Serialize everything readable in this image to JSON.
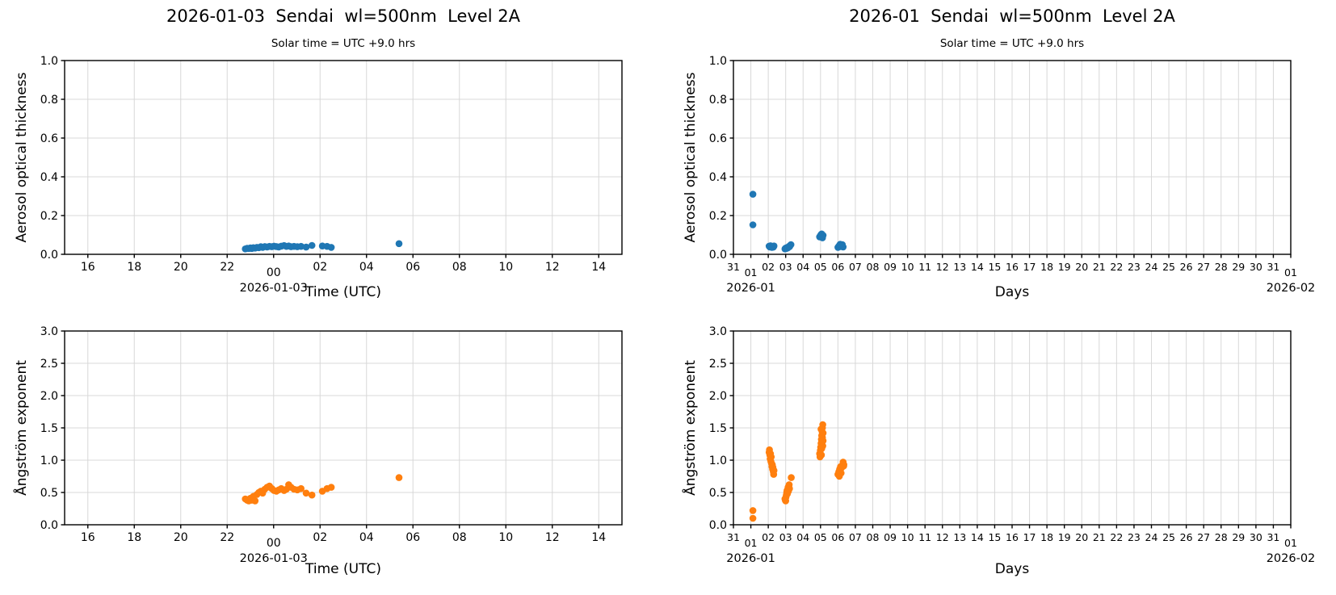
{
  "figure": {
    "colors": {
      "aot_series": "#1f77b4",
      "angstrom_series": "#ff7f0e",
      "grid": "#d8d8d8",
      "spine": "#000000",
      "text": "#000000"
    }
  },
  "chart_data": [
    {
      "id": "aot-daily",
      "type": "scatter",
      "title": "2026-01-03  Sendai  wl=500nm  Level 2A",
      "subtitle": "Solar time = UTC +9.0 hrs",
      "xlabel": "Time (UTC)",
      "ylabel": "Aerosol optical thickness",
      "color": "#1f77b4",
      "grid": true,
      "xlim": [
        15,
        39
      ],
      "ylim": [
        0.0,
        1.0
      ],
      "yticks": [
        {
          "v": 0.0,
          "label": "0.0"
        },
        {
          "v": 0.2,
          "label": "0.2"
        },
        {
          "v": 0.4,
          "label": "0.4"
        },
        {
          "v": 0.6,
          "label": "0.6"
        },
        {
          "v": 0.8,
          "label": "0.8"
        },
        {
          "v": 1.0,
          "label": "1.0"
        }
      ],
      "xticks": [
        {
          "v": 16,
          "label": "16"
        },
        {
          "v": 18,
          "label": "18"
        },
        {
          "v": 20,
          "label": "20"
        },
        {
          "v": 22,
          "label": "22"
        },
        {
          "v": 24,
          "label": "00",
          "major": true,
          "date": "2026-01-03"
        },
        {
          "v": 26,
          "label": "02"
        },
        {
          "v": 28,
          "label": "04"
        },
        {
          "v": 30,
          "label": "06"
        },
        {
          "v": 32,
          "label": "08"
        },
        {
          "v": 34,
          "label": "10"
        },
        {
          "v": 36,
          "label": "12"
        },
        {
          "v": 38,
          "label": "14"
        }
      ],
      "points": [
        [
          22.78,
          0.028
        ],
        [
          22.86,
          0.031
        ],
        [
          22.93,
          0.03
        ],
        [
          23.0,
          0.033
        ],
        [
          23.06,
          0.03
        ],
        [
          23.13,
          0.034
        ],
        [
          23.2,
          0.032
        ],
        [
          23.28,
          0.036
        ],
        [
          23.36,
          0.034
        ],
        [
          23.45,
          0.039
        ],
        [
          23.53,
          0.036
        ],
        [
          23.62,
          0.04
        ],
        [
          23.72,
          0.038
        ],
        [
          23.82,
          0.041
        ],
        [
          23.92,
          0.039
        ],
        [
          24.02,
          0.042
        ],
        [
          24.12,
          0.04
        ],
        [
          24.22,
          0.038
        ],
        [
          24.33,
          0.042
        ],
        [
          24.45,
          0.045
        ],
        [
          24.55,
          0.041
        ],
        [
          24.65,
          0.043
        ],
        [
          24.75,
          0.039
        ],
        [
          24.88,
          0.041
        ],
        [
          25.02,
          0.039
        ],
        [
          25.18,
          0.041
        ],
        [
          25.4,
          0.037
        ],
        [
          25.65,
          0.046
        ],
        [
          26.1,
          0.043
        ],
        [
          26.3,
          0.041
        ],
        [
          26.48,
          0.036
        ],
        [
          29.4,
          0.055
        ]
      ]
    },
    {
      "id": "aot-monthly",
      "type": "scatter",
      "title": "2026-01  Sendai  wl=500nm  Level 2A",
      "subtitle": "Solar time = UTC +9.0 hrs",
      "xlabel": "Days",
      "ylabel": "Aerosol optical thickness",
      "color": "#1f77b4",
      "grid": true,
      "xlim": [
        0,
        32
      ],
      "ylim": [
        0.0,
        1.0
      ],
      "yticks": [
        {
          "v": 0.0,
          "label": "0.0"
        },
        {
          "v": 0.2,
          "label": "0.2"
        },
        {
          "v": 0.4,
          "label": "0.4"
        },
        {
          "v": 0.6,
          "label": "0.6"
        },
        {
          "v": 0.8,
          "label": "0.8"
        },
        {
          "v": 1.0,
          "label": "1.0"
        }
      ],
      "xticks": [
        {
          "v": 0,
          "label": "31"
        },
        {
          "v": 1,
          "label": "01",
          "major": true,
          "date": "2026-01"
        },
        {
          "v": 2,
          "label": "02"
        },
        {
          "v": 3,
          "label": "03"
        },
        {
          "v": 4,
          "label": "04"
        },
        {
          "v": 5,
          "label": "05"
        },
        {
          "v": 6,
          "label": "06"
        },
        {
          "v": 7,
          "label": "07"
        },
        {
          "v": 8,
          "label": "08"
        },
        {
          "v": 9,
          "label": "09"
        },
        {
          "v": 10,
          "label": "10"
        },
        {
          "v": 11,
          "label": "11"
        },
        {
          "v": 12,
          "label": "12"
        },
        {
          "v": 13,
          "label": "13"
        },
        {
          "v": 14,
          "label": "14"
        },
        {
          "v": 15,
          "label": "15"
        },
        {
          "v": 16,
          "label": "16"
        },
        {
          "v": 17,
          "label": "17"
        },
        {
          "v": 18,
          "label": "18"
        },
        {
          "v": 19,
          "label": "19"
        },
        {
          "v": 20,
          "label": "20"
        },
        {
          "v": 21,
          "label": "21"
        },
        {
          "v": 22,
          "label": "22"
        },
        {
          "v": 23,
          "label": "23"
        },
        {
          "v": 24,
          "label": "24"
        },
        {
          "v": 25,
          "label": "25"
        },
        {
          "v": 26,
          "label": "26"
        },
        {
          "v": 27,
          "label": "27"
        },
        {
          "v": 28,
          "label": "28"
        },
        {
          "v": 29,
          "label": "29"
        },
        {
          "v": 30,
          "label": "30"
        },
        {
          "v": 31,
          "label": "31"
        },
        {
          "v": 32,
          "label": "01",
          "major": true,
          "date": "2026-02"
        }
      ],
      "points": [
        [
          1.12,
          0.31
        ],
        [
          1.12,
          0.152
        ],
        [
          2.05,
          0.042
        ],
        [
          2.09,
          0.038
        ],
        [
          2.13,
          0.044
        ],
        [
          2.17,
          0.04
        ],
        [
          2.21,
          0.036
        ],
        [
          2.25,
          0.041
        ],
        [
          2.29,
          0.037
        ],
        [
          2.33,
          0.043
        ],
        [
          2.96,
          0.028
        ],
        [
          3.0,
          0.032
        ],
        [
          3.04,
          0.03
        ],
        [
          3.08,
          0.035
        ],
        [
          3.12,
          0.033
        ],
        [
          3.16,
          0.038
        ],
        [
          3.2,
          0.041
        ],
        [
          3.25,
          0.045
        ],
        [
          3.3,
          0.05
        ],
        [
          3.23,
          0.04
        ],
        [
          4.95,
          0.09
        ],
        [
          4.99,
          0.096
        ],
        [
          5.03,
          0.102
        ],
        [
          5.07,
          0.094
        ],
        [
          5.11,
          0.088
        ],
        [
          5.15,
          0.098
        ],
        [
          5.07,
          0.105
        ],
        [
          5.11,
          0.085
        ],
        [
          6.0,
          0.036
        ],
        [
          6.05,
          0.042
        ],
        [
          6.1,
          0.047
        ],
        [
          6.15,
          0.04
        ],
        [
          6.2,
          0.044
        ],
        [
          6.25,
          0.05
        ],
        [
          6.3,
          0.038
        ],
        [
          6.13,
          0.052
        ]
      ]
    },
    {
      "id": "angstrom-daily",
      "type": "scatter",
      "xlabel": "Time (UTC)",
      "ylabel": "Ångström exponent",
      "color": "#ff7f0e",
      "grid": true,
      "xlim": [
        15,
        39
      ],
      "ylim": [
        0.0,
        3.0
      ],
      "yticks": [
        {
          "v": 0.0,
          "label": "0.0"
        },
        {
          "v": 0.5,
          "label": "0.5"
        },
        {
          "v": 1.0,
          "label": "1.0"
        },
        {
          "v": 1.5,
          "label": "1.5"
        },
        {
          "v": 2.0,
          "label": "2.0"
        },
        {
          "v": 2.5,
          "label": "2.5"
        },
        {
          "v": 3.0,
          "label": "3.0"
        }
      ],
      "xticks": [
        {
          "v": 16,
          "label": "16"
        },
        {
          "v": 18,
          "label": "18"
        },
        {
          "v": 20,
          "label": "20"
        },
        {
          "v": 22,
          "label": "22"
        },
        {
          "v": 24,
          "label": "00",
          "major": true,
          "date": "2026-01-03"
        },
        {
          "v": 26,
          "label": "02"
        },
        {
          "v": 28,
          "label": "04"
        },
        {
          "v": 30,
          "label": "06"
        },
        {
          "v": 32,
          "label": "08"
        },
        {
          "v": 34,
          "label": "10"
        },
        {
          "v": 36,
          "label": "12"
        },
        {
          "v": 38,
          "label": "14"
        }
      ],
      "points": [
        [
          22.78,
          0.4
        ],
        [
          22.86,
          0.38
        ],
        [
          22.93,
          0.37
        ],
        [
          23.0,
          0.41
        ],
        [
          23.06,
          0.38
        ],
        [
          23.13,
          0.44
        ],
        [
          23.2,
          0.37
        ],
        [
          23.28,
          0.47
        ],
        [
          23.36,
          0.5
        ],
        [
          23.45,
          0.52
        ],
        [
          23.53,
          0.49
        ],
        [
          23.62,
          0.55
        ],
        [
          23.72,
          0.58
        ],
        [
          23.82,
          0.6
        ],
        [
          23.92,
          0.56
        ],
        [
          24.02,
          0.53
        ],
        [
          24.12,
          0.52
        ],
        [
          24.22,
          0.54
        ],
        [
          24.33,
          0.56
        ],
        [
          24.45,
          0.53
        ],
        [
          24.55,
          0.55
        ],
        [
          24.65,
          0.62
        ],
        [
          24.75,
          0.58
        ],
        [
          24.88,
          0.55
        ],
        [
          25.02,
          0.54
        ],
        [
          25.18,
          0.56
        ],
        [
          25.4,
          0.49
        ],
        [
          25.65,
          0.46
        ],
        [
          26.1,
          0.52
        ],
        [
          26.3,
          0.56
        ],
        [
          26.48,
          0.58
        ],
        [
          29.4,
          0.73
        ]
      ]
    },
    {
      "id": "angstrom-monthly",
      "type": "scatter",
      "xlabel": "Days",
      "ylabel": "Ångström exponent",
      "color": "#ff7f0e",
      "grid": true,
      "xlim": [
        0,
        32
      ],
      "ylim": [
        0.0,
        3.0
      ],
      "yticks": [
        {
          "v": 0.0,
          "label": "0.0"
        },
        {
          "v": 0.5,
          "label": "0.5"
        },
        {
          "v": 1.0,
          "label": "1.0"
        },
        {
          "v": 1.5,
          "label": "1.5"
        },
        {
          "v": 2.0,
          "label": "2.0"
        },
        {
          "v": 2.5,
          "label": "2.5"
        },
        {
          "v": 3.0,
          "label": "3.0"
        }
      ],
      "xticks": [
        {
          "v": 0,
          "label": "31"
        },
        {
          "v": 1,
          "label": "01",
          "major": true,
          "date": "2026-01"
        },
        {
          "v": 2,
          "label": "02"
        },
        {
          "v": 3,
          "label": "03"
        },
        {
          "v": 4,
          "label": "04"
        },
        {
          "v": 5,
          "label": "05"
        },
        {
          "v": 6,
          "label": "06"
        },
        {
          "v": 7,
          "label": "07"
        },
        {
          "v": 8,
          "label": "08"
        },
        {
          "v": 9,
          "label": "09"
        },
        {
          "v": 10,
          "label": "10"
        },
        {
          "v": 11,
          "label": "11"
        },
        {
          "v": 12,
          "label": "12"
        },
        {
          "v": 13,
          "label": "13"
        },
        {
          "v": 14,
          "label": "14"
        },
        {
          "v": 15,
          "label": "15"
        },
        {
          "v": 16,
          "label": "16"
        },
        {
          "v": 17,
          "label": "17"
        },
        {
          "v": 18,
          "label": "18"
        },
        {
          "v": 19,
          "label": "19"
        },
        {
          "v": 20,
          "label": "20"
        },
        {
          "v": 21,
          "label": "21"
        },
        {
          "v": 22,
          "label": "22"
        },
        {
          "v": 23,
          "label": "23"
        },
        {
          "v": 24,
          "label": "24"
        },
        {
          "v": 25,
          "label": "25"
        },
        {
          "v": 26,
          "label": "26"
        },
        {
          "v": 27,
          "label": "27"
        },
        {
          "v": 28,
          "label": "28"
        },
        {
          "v": 29,
          "label": "29"
        },
        {
          "v": 30,
          "label": "30"
        },
        {
          "v": 31,
          "label": "31"
        },
        {
          "v": 32,
          "label": "01",
          "major": true,
          "date": "2026-02"
        }
      ],
      "points": [
        [
          1.12,
          0.22
        ],
        [
          1.12,
          0.1
        ],
        [
          2.05,
          1.12
        ],
        [
          2.07,
          1.16
        ],
        [
          2.09,
          1.08
        ],
        [
          2.11,
          1.02
        ],
        [
          2.13,
          1.1
        ],
        [
          2.15,
          0.98
        ],
        [
          2.17,
          1.05
        ],
        [
          2.19,
          0.95
        ],
        [
          2.21,
          0.9
        ],
        [
          2.23,
          0.93
        ],
        [
          2.25,
          0.86
        ],
        [
          2.27,
          0.89
        ],
        [
          2.29,
          0.82
        ],
        [
          2.31,
          0.78
        ],
        [
          2.33,
          0.84
        ],
        [
          2.96,
          0.4
        ],
        [
          2.98,
          0.38
        ],
        [
          3.0,
          0.37
        ],
        [
          3.02,
          0.43
        ],
        [
          3.04,
          0.46
        ],
        [
          3.06,
          0.5
        ],
        [
          3.08,
          0.53
        ],
        [
          3.1,
          0.48
        ],
        [
          3.12,
          0.55
        ],
        [
          3.14,
          0.58
        ],
        [
          3.16,
          0.52
        ],
        [
          3.18,
          0.6
        ],
        [
          3.2,
          0.62
        ],
        [
          3.22,
          0.56
        ],
        [
          3.32,
          0.73
        ],
        [
          4.95,
          1.1
        ],
        [
          4.97,
          1.05
        ],
        [
          4.99,
          1.15
        ],
        [
          5.01,
          1.2
        ],
        [
          5.03,
          1.26
        ],
        [
          5.05,
          1.32
        ],
        [
          5.07,
          1.38
        ],
        [
          5.09,
          1.44
        ],
        [
          5.11,
          1.5
        ],
        [
          5.13,
          1.55
        ],
        [
          5.05,
          1.08
        ],
        [
          5.07,
          1.18
        ],
        [
          5.09,
          1.28
        ],
        [
          5.11,
          1.35
        ],
        [
          5.13,
          1.22
        ],
        [
          5.15,
          1.42
        ],
        [
          5.03,
          1.48
        ],
        [
          5.15,
          1.3
        ],
        [
          6.0,
          0.78
        ],
        [
          6.05,
          0.82
        ],
        [
          6.1,
          0.86
        ],
        [
          6.15,
          0.9
        ],
        [
          6.2,
          0.88
        ],
        [
          6.25,
          0.92
        ],
        [
          6.3,
          0.95
        ],
        [
          6.34,
          0.93
        ],
        [
          6.08,
          0.75
        ],
        [
          6.18,
          0.8
        ],
        [
          6.3,
          0.97
        ],
        [
          6.33,
          0.91
        ]
      ]
    }
  ]
}
